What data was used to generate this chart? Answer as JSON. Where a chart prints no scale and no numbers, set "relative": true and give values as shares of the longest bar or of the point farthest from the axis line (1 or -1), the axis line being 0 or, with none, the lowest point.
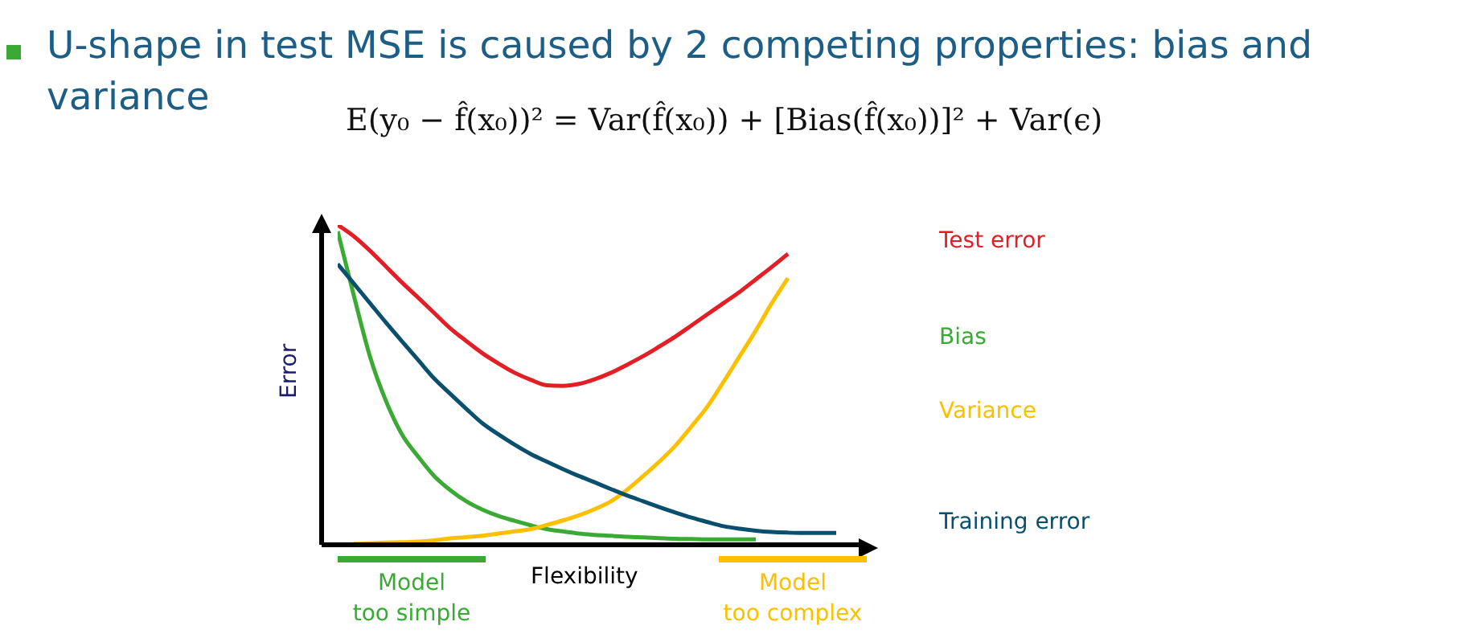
{
  "chart_data": {
    "type": "line",
    "relative": true,
    "title": "U-shape in test MSE is caused by 2 competing properties: bias and variance",
    "subtitle": "E(y₀ − f̂(x₀))² = Var(f̂(x₀)) + [Bias(f̂(x₀))]² + Var(ϵ)",
    "xlabel": "Flexibility",
    "ylabel": "Error",
    "annotations": [
      "Model\ntoo simple",
      "Model\ntoo complex"
    ],
    "legend": "right",
    "grid": false,
    "marker": "none",
    "line_style": "solid",
    "categories": [
      null,
      null,
      null,
      null,
      null,
      null,
      null,
      null,
      null,
      null,
      null,
      null,
      null,
      null,
      null,
      null,
      null,
      null,
      null,
      null,
      null,
      null,
      null,
      null,
      null,
      null,
      null,
      null,
      null,
      null,
      null,
      null
    ],
    "series": [
      {
        "name": "Test error",
        "color": "#e31e24",
        "values": [
          1.0,
          0.965,
          0.92,
          0.87,
          0.82,
          0.773,
          0.725,
          0.677,
          0.637,
          0.599,
          0.567,
          0.538,
          0.516,
          0.499,
          0.497,
          0.503,
          0.518,
          0.538,
          0.563,
          0.59,
          0.62,
          0.651,
          0.686,
          0.721,
          0.756,
          0.791,
          0.83,
          0.869,
          0.91,
          null,
          null,
          null
        ]
      },
      {
        "name": "Bias",
        "color": "#3aaa35",
        "values": [
          0.98,
          0.78,
          0.59,
          0.45,
          0.345,
          0.276,
          0.215,
          0.171,
          0.136,
          0.11,
          0.09,
          0.075,
          0.061,
          0.049,
          0.042,
          0.035,
          0.031,
          0.028,
          0.025,
          0.023,
          0.021,
          0.019,
          0.018,
          0.017,
          0.017,
          0.017,
          0.017,
          null,
          null,
          null,
          null,
          null
        ]
      },
      {
        "name": "Variance",
        "color": "#fcc000",
        "values": [
          null,
          0.003,
          0.005,
          0.007,
          0.008,
          0.01,
          0.014,
          0.02,
          0.024,
          0.028,
          0.035,
          0.042,
          0.049,
          0.062,
          0.076,
          0.092,
          0.112,
          0.136,
          0.172,
          0.215,
          0.26,
          0.31,
          0.37,
          0.433,
          0.51,
          0.59,
          0.67,
          0.756,
          0.834,
          null,
          null,
          null
        ]
      },
      {
        "name": "Training error",
        "color": "#0a4f6e",
        "values": [
          0.878,
          0.817,
          0.756,
          0.695,
          0.636,
          0.578,
          0.52,
          0.472,
          0.425,
          0.38,
          0.345,
          0.313,
          0.284,
          0.26,
          0.237,
          0.215,
          0.195,
          0.174,
          0.154,
          0.136,
          0.118,
          0.101,
          0.085,
          0.071,
          0.058,
          0.05,
          0.044,
          0.04,
          0.038,
          0.037,
          0.037,
          0.037
        ]
      }
    ]
  }
}
